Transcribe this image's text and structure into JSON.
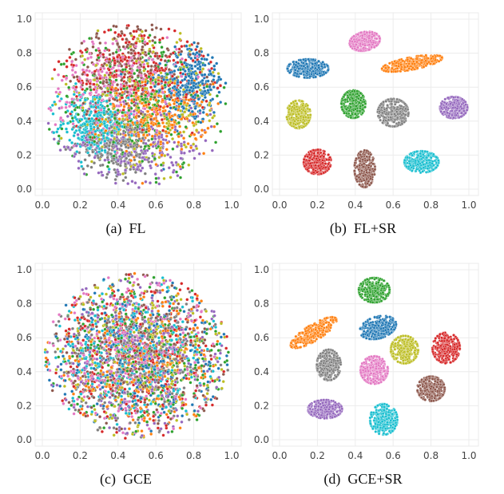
{
  "colors": {
    "blue": "#1f77b4",
    "orange": "#ff7f0e",
    "green": "#2ca02c",
    "red": "#d62728",
    "purple": "#9467bd",
    "brown": "#8c564b",
    "pink": "#e377c2",
    "gray": "#7f7f7f",
    "olive": "#bcbd22",
    "cyan": "#17becf"
  },
  "chart_data": [
    {
      "type": "scatter",
      "caption": "(a)  FL",
      "xlim": [
        0,
        1
      ],
      "ylim": [
        0,
        1
      ],
      "xticks": [
        "0.0",
        "0.2",
        "0.4",
        "0.6",
        "0.8",
        "1.0"
      ],
      "yticks": [
        "0.0",
        "0.2",
        "0.4",
        "0.6",
        "0.8",
        "1.0"
      ],
      "grid": true,
      "clusters": [
        {
          "color": "blue",
          "cx": 0.78,
          "cy": 0.62,
          "sx": 0.09,
          "sy": 0.12,
          "n": 320
        },
        {
          "color": "orange",
          "cx": 0.6,
          "cy": 0.42,
          "sx": 0.14,
          "sy": 0.1,
          "n": 300
        },
        {
          "color": "cyan",
          "cx": 0.27,
          "cy": 0.38,
          "sx": 0.09,
          "sy": 0.1,
          "n": 300
        },
        {
          "color": "gray",
          "cx": 0.4,
          "cy": 0.26,
          "sx": 0.1,
          "sy": 0.09,
          "n": 280
        },
        {
          "color": "purple",
          "cx": 0.5,
          "cy": 0.25,
          "sx": 0.2,
          "sy": 0.14,
          "n": 260
        },
        {
          "color": "red",
          "cx": 0.5,
          "cy": 0.7,
          "sx": 0.2,
          "sy": 0.15,
          "n": 300
        },
        {
          "color": "pink",
          "cx": 0.38,
          "cy": 0.62,
          "sx": 0.18,
          "sy": 0.14,
          "n": 280
        },
        {
          "color": "green",
          "cx": 0.5,
          "cy": 0.5,
          "sx": 0.22,
          "sy": 0.2,
          "n": 300
        },
        {
          "color": "brown",
          "cx": 0.45,
          "cy": 0.72,
          "sx": 0.2,
          "sy": 0.15,
          "n": 250
        },
        {
          "color": "olive",
          "cx": 0.55,
          "cy": 0.5,
          "sx": 0.22,
          "sy": 0.2,
          "n": 250
        }
      ]
    },
    {
      "type": "scatter",
      "caption": "(b)  FL+SR",
      "xlim": [
        0,
        1
      ],
      "ylim": [
        0,
        1
      ],
      "xticks": [
        "0.0",
        "0.2",
        "0.4",
        "0.6",
        "0.8",
        "1.0"
      ],
      "yticks": [
        "0.0",
        "0.2",
        "0.4",
        "0.6",
        "0.8",
        "1.0"
      ],
      "grid": true,
      "clusters": [
        {
          "color": "pink",
          "cx": 0.45,
          "cy": 0.87,
          "sx": 0.045,
          "sy": 0.03,
          "rot": 15,
          "n": 300
        },
        {
          "color": "blue",
          "cx": 0.15,
          "cy": 0.71,
          "sx": 0.06,
          "sy": 0.03,
          "n": 300
        },
        {
          "color": "orange",
          "cx": 0.7,
          "cy": 0.74,
          "sx": 0.09,
          "sy": 0.02,
          "rot": 12,
          "n": 300
        },
        {
          "color": "olive",
          "cx": 0.1,
          "cy": 0.44,
          "sx": 0.035,
          "sy": 0.045,
          "n": 300
        },
        {
          "color": "green",
          "cx": 0.39,
          "cy": 0.5,
          "sx": 0.035,
          "sy": 0.045,
          "n": 300
        },
        {
          "color": "gray",
          "cx": 0.6,
          "cy": 0.45,
          "sx": 0.045,
          "sy": 0.045,
          "n": 300
        },
        {
          "color": "purple",
          "cx": 0.92,
          "cy": 0.48,
          "sx": 0.04,
          "sy": 0.035,
          "n": 300
        },
        {
          "color": "red",
          "cx": 0.2,
          "cy": 0.16,
          "sx": 0.04,
          "sy": 0.04,
          "n": 300
        },
        {
          "color": "brown",
          "cx": 0.45,
          "cy": 0.12,
          "sx": 0.03,
          "sy": 0.06,
          "n": 300
        },
        {
          "color": "cyan",
          "cx": 0.75,
          "cy": 0.16,
          "sx": 0.05,
          "sy": 0.035,
          "n": 300
        }
      ]
    },
    {
      "type": "scatter",
      "caption": "(c)  GCE",
      "xlim": [
        0,
        1
      ],
      "ylim": [
        0,
        1
      ],
      "xticks": [
        "0.0",
        "0.2",
        "0.4",
        "0.6",
        "0.8",
        "1.0"
      ],
      "yticks": [
        "0.0",
        "0.2",
        "0.4",
        "0.6",
        "0.8",
        "1.0"
      ],
      "grid": true,
      "clusters": [
        {
          "color": "blue",
          "cx": 0.5,
          "cy": 0.5,
          "sx": 0.25,
          "sy": 0.25,
          "n": 290
        },
        {
          "color": "orange",
          "cx": 0.55,
          "cy": 0.45,
          "sx": 0.22,
          "sy": 0.22,
          "n": 290
        },
        {
          "color": "green",
          "cx": 0.5,
          "cy": 0.5,
          "sx": 0.25,
          "sy": 0.25,
          "n": 290
        },
        {
          "color": "red",
          "cx": 0.5,
          "cy": 0.5,
          "sx": 0.25,
          "sy": 0.25,
          "n": 290
        },
        {
          "color": "purple",
          "cx": 0.5,
          "cy": 0.45,
          "sx": 0.25,
          "sy": 0.25,
          "n": 290
        },
        {
          "color": "brown",
          "cx": 0.5,
          "cy": 0.5,
          "sx": 0.25,
          "sy": 0.25,
          "n": 290
        },
        {
          "color": "pink",
          "cx": 0.45,
          "cy": 0.55,
          "sx": 0.25,
          "sy": 0.25,
          "n": 290
        },
        {
          "color": "gray",
          "cx": 0.5,
          "cy": 0.5,
          "sx": 0.25,
          "sy": 0.25,
          "n": 290
        },
        {
          "color": "olive",
          "cx": 0.5,
          "cy": 0.5,
          "sx": 0.25,
          "sy": 0.25,
          "n": 290
        },
        {
          "color": "cyan",
          "cx": 0.45,
          "cy": 0.5,
          "sx": 0.22,
          "sy": 0.22,
          "n": 290
        }
      ]
    },
    {
      "type": "scatter",
      "caption": "(d)  GCE+SR",
      "xlim": [
        0,
        1
      ],
      "ylim": [
        0,
        1
      ],
      "xticks": [
        "0.0",
        "0.2",
        "0.4",
        "0.6",
        "0.8",
        "1.0"
      ],
      "yticks": [
        "0.0",
        "0.2",
        "0.4",
        "0.6",
        "0.8",
        "1.0"
      ],
      "grid": true,
      "clusters": [
        {
          "color": "green",
          "cx": 0.5,
          "cy": 0.88,
          "sx": 0.045,
          "sy": 0.04,
          "n": 300
        },
        {
          "color": "blue",
          "cx": 0.52,
          "cy": 0.66,
          "sx": 0.055,
          "sy": 0.035,
          "rot": 20,
          "n": 300
        },
        {
          "color": "orange",
          "cx": 0.18,
          "cy": 0.63,
          "sx": 0.08,
          "sy": 0.025,
          "rot": 35,
          "n": 300
        },
        {
          "color": "olive",
          "cx": 0.66,
          "cy": 0.53,
          "sx": 0.04,
          "sy": 0.045,
          "n": 300
        },
        {
          "color": "red",
          "cx": 0.88,
          "cy": 0.54,
          "sx": 0.04,
          "sy": 0.05,
          "n": 300
        },
        {
          "color": "gray",
          "cx": 0.26,
          "cy": 0.44,
          "sx": 0.035,
          "sy": 0.05,
          "n": 300
        },
        {
          "color": "pink",
          "cx": 0.5,
          "cy": 0.41,
          "sx": 0.04,
          "sy": 0.045,
          "n": 300
        },
        {
          "color": "brown",
          "cx": 0.8,
          "cy": 0.3,
          "sx": 0.04,
          "sy": 0.04,
          "n": 300
        },
        {
          "color": "purple",
          "cx": 0.24,
          "cy": 0.18,
          "sx": 0.05,
          "sy": 0.03,
          "n": 300
        },
        {
          "color": "cyan",
          "cx": 0.55,
          "cy": 0.12,
          "sx": 0.04,
          "sy": 0.05,
          "n": 300
        }
      ]
    }
  ]
}
